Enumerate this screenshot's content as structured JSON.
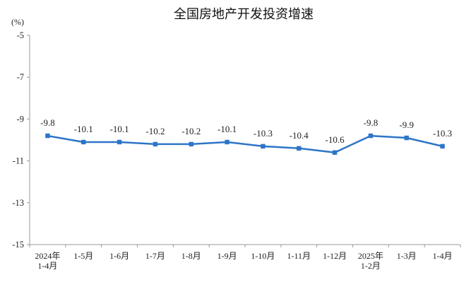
{
  "chart_data": {
    "type": "line",
    "title": "全国房地产开发投资增速",
    "unit_label": "(%)",
    "categories": [
      [
        "2024年",
        "1-4月"
      ],
      [
        "1-5月"
      ],
      [
        "1-6月"
      ],
      [
        "1-7月"
      ],
      [
        "1-8月"
      ],
      [
        "1-9月"
      ],
      [
        "1-10月"
      ],
      [
        "1-11月"
      ],
      [
        "1-12月"
      ],
      [
        "2025年",
        "1-2月"
      ],
      [
        "1-3月"
      ],
      [
        "1-4月"
      ]
    ],
    "series": [
      {
        "values": [
          -9.8,
          -10.1,
          -10.1,
          -10.2,
          -10.2,
          -10.1,
          -10.3,
          -10.4,
          -10.6,
          -9.8,
          -9.9,
          -10.3
        ],
        "color": "#2e75c7"
      }
    ],
    "data_labels": [
      "-9.8",
      "-10.1",
      "-10.1",
      "-10.2",
      "-10.2",
      "-10.1",
      "-10.3",
      "-10.4",
      "-10.6",
      "-9.8",
      "-9.9",
      "-10.3"
    ],
    "yticks": [
      "-5",
      "-7",
      "-9",
      "-11",
      "-13",
      "-15"
    ],
    "ylim": [
      -15,
      -5
    ],
    "grid": false,
    "axis_color": "#9a9a9a"
  }
}
